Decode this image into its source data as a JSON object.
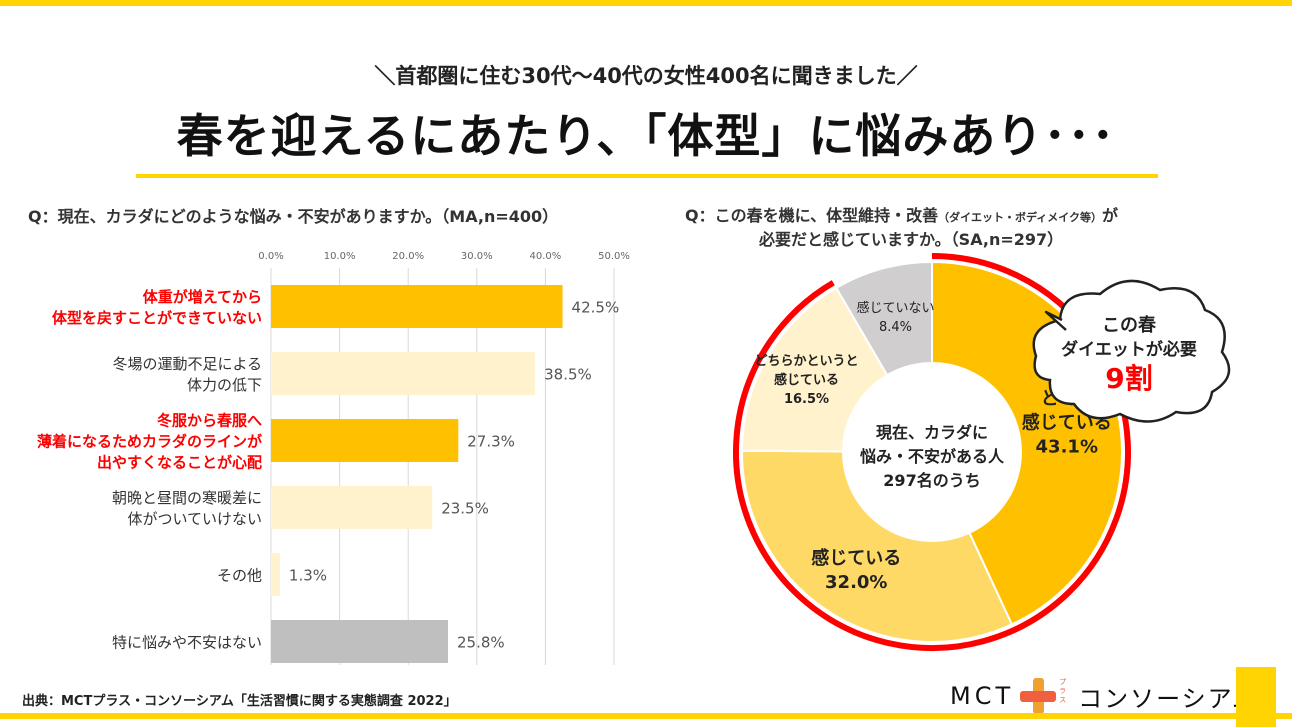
{
  "header": {
    "subtitle": "＼首都圏に住む30代～40代の女性400名に聞きました／",
    "title": "春を迎えるにあたり、「体型」に悩みあり･･･"
  },
  "left": {
    "question": "Q：現在、カラダにどのような悩み・不安がありますか。（MA,n=400）"
  },
  "right": {
    "question_line1_a": "Q：この春を機に、体型維持・改善",
    "question_line1_small": "（ダイエット・ボディメイク等）",
    "question_line1_b": "が",
    "question_line2": "必要だと感じていますか。（SA,n=297）",
    "center_label": [
      "現在、カラダに",
      "悩み・不安がある人",
      "297名のうち"
    ],
    "callout": [
      "この春",
      "ダイエットが必要",
      "9割"
    ]
  },
  "colors": {
    "highlight": "#ffc000",
    "normal": "#fff2cc",
    "none": "#bfbfbf",
    "red": "#ff0000",
    "pie_very": "#ffc000",
    "pie_feel": "#ffd966",
    "pie_some": "#fff2cc",
    "pie_not": "#d0cece",
    "accent": "#ffd400"
  },
  "chart_data": [
    {
      "type": "bar",
      "orientation": "horizontal",
      "title": "",
      "categories": [
        [
          "体重が増えてから",
          "体型を戻すことができていない"
        ],
        [
          "冬場の運動不足による",
          "体力の低下"
        ],
        [
          "冬服から春服へ",
          "薄着になるためカラダのラインが",
          "出やすくなることが心配"
        ],
        [
          "朝晩と昼間の寒暖差に",
          "体がついていけない"
        ],
        [
          "その他"
        ],
        [
          "特に悩みや不安はない"
        ]
      ],
      "values": [
        42.5,
        38.5,
        27.3,
        23.5,
        1.3,
        25.8
      ],
      "value_labels": [
        "42.5%",
        "38.5%",
        "27.3%",
        "23.5%",
        "1.3%",
        "25.8%"
      ],
      "highlighted": [
        true,
        false,
        true,
        false,
        false,
        false
      ],
      "no_concern": [
        false,
        false,
        false,
        false,
        false,
        true
      ],
      "xlim": [
        0,
        50
      ],
      "ticks": [
        "0.0%",
        "10.0%",
        "20.0%",
        "30.0%",
        "40.0%",
        "50.0%"
      ],
      "grid": true
    },
    {
      "type": "pie",
      "variant": "donut",
      "slices": [
        {
          "label": [
            "とても",
            "感じている"
          ],
          "value": 43.1,
          "value_label": "43.1%",
          "color": "#ffc000"
        },
        {
          "label": [
            "感じている"
          ],
          "value": 32.0,
          "value_label": "32.0%",
          "color": "#ffd966"
        },
        {
          "label": [
            "どちらかというと",
            "感じている"
          ],
          "value": 16.5,
          "value_label": "16.5%",
          "color": "#fff2cc"
        },
        {
          "label": [
            "感じていない"
          ],
          "value": 8.4,
          "value_label": "8.4%",
          "color": "#d0cece"
        }
      ],
      "highlighted_share": 91.6
    }
  ],
  "footer": {
    "source": "出典：MCTプラス・コンソーシアム「生活習慣に関する実態調査 2022」",
    "logo_left": "MCT",
    "logo_right": "コンソーシアム",
    "logo_kana": "プラス"
  }
}
